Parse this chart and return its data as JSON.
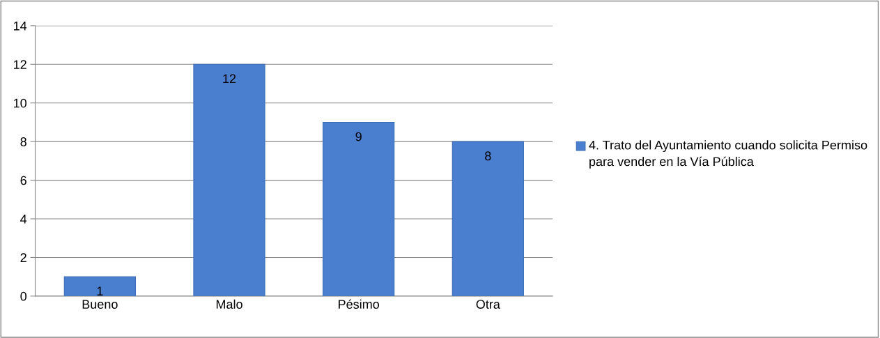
{
  "chart_data": {
    "type": "bar",
    "categories": [
      "Bueno",
      "Malo",
      "Pésimo",
      "Otra"
    ],
    "series": [
      {
        "name": "4. Trato del Ayuntamiento cuando solicita Permiso para vender en la Vía Pública",
        "color": "#4a7fcf",
        "values": [
          1,
          12,
          9,
          8
        ]
      }
    ],
    "ylim": [
      0,
      14
    ],
    "yticks": [
      0,
      2,
      4,
      6,
      8,
      10,
      12,
      14
    ],
    "grid": "y",
    "legend": "right",
    "data_labels": true
  }
}
